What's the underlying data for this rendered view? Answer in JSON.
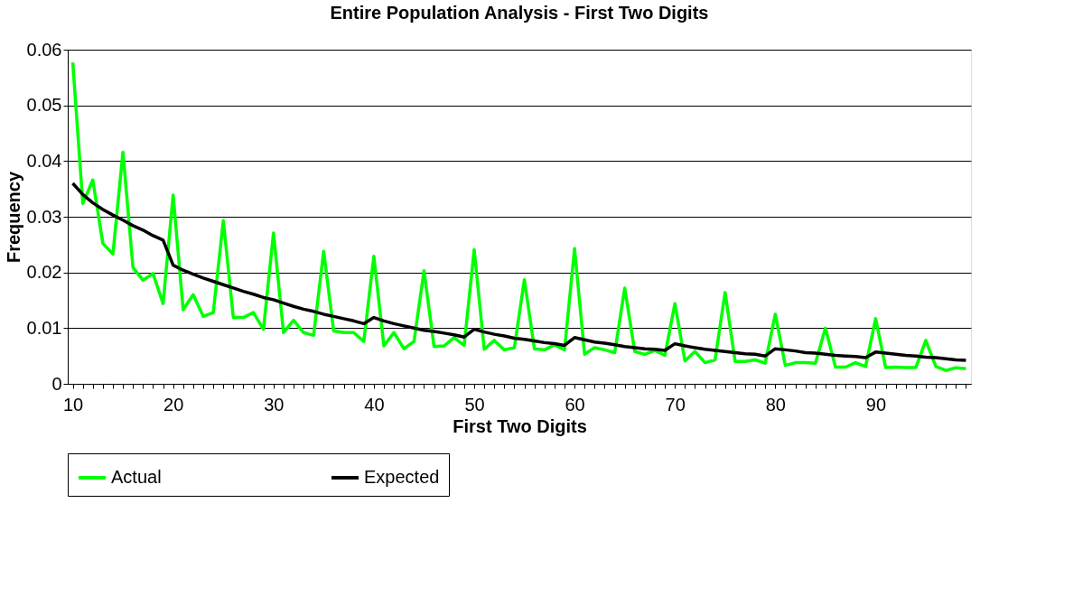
{
  "chart_data": {
    "type": "line",
    "title": "Entire Population Analysis - First Two Digits",
    "xlabel": "First Two Digits",
    "ylabel": "Frequency",
    "categories": [
      "10",
      null,
      null,
      null,
      null,
      null,
      null,
      null,
      null,
      null,
      "20",
      null,
      null,
      null,
      null,
      null,
      null,
      null,
      null,
      null,
      "30",
      null,
      null,
      null,
      null,
      null,
      null,
      null,
      null,
      null,
      "40",
      null,
      null,
      null,
      null,
      null,
      null,
      null,
      null,
      null,
      "50",
      null,
      null,
      null,
      null,
      null,
      null,
      null,
      null,
      null,
      "60",
      null,
      null,
      null,
      null,
      null,
      null,
      null,
      null,
      null,
      "70",
      null,
      null,
      null,
      null,
      null,
      null,
      null,
      null,
      null,
      "80",
      null,
      null,
      null,
      null,
      null,
      null,
      null,
      null,
      null,
      "90",
      null,
      null,
      null,
      null,
      null,
      null,
      null,
      null,
      null
    ],
    "series": [
      {
        "name": "Actual",
        "color": "#00ff00",
        "values": [
          0.0577,
          0.0324,
          0.0366,
          0.0252,
          0.0233,
          0.0416,
          0.0209,
          0.0186,
          0.0198,
          0.0144,
          0.0339,
          0.0133,
          0.016,
          0.0121,
          0.0128,
          0.0293,
          0.0119,
          0.0119,
          0.0128,
          0.0098,
          0.0271,
          0.0092,
          0.0114,
          0.0092,
          0.0087,
          0.0238,
          0.0095,
          0.0092,
          0.0092,
          0.0076,
          0.0229,
          0.0068,
          0.0092,
          0.0063,
          0.0076,
          0.0203,
          0.0067,
          0.0068,
          0.0083,
          0.0069,
          0.0241,
          0.0062,
          0.0078,
          0.0061,
          0.0065,
          0.0187,
          0.0063,
          0.0061,
          0.007,
          0.0061,
          0.0243,
          0.0053,
          0.0065,
          0.0061,
          0.0056,
          0.0172,
          0.0058,
          0.0053,
          0.006,
          0.0051,
          0.0144,
          0.0041,
          0.0058,
          0.0038,
          0.0043,
          0.0164,
          0.004,
          0.004,
          0.0043,
          0.0037,
          0.0125,
          0.0033,
          0.0038,
          0.0038,
          0.0037,
          0.01,
          0.003,
          0.003,
          0.0038,
          0.0031,
          0.0117,
          0.0029,
          0.003,
          0.0029,
          0.0029,
          0.0078,
          0.0031,
          0.0024,
          0.0029,
          0.0027
        ]
      },
      {
        "name": "Expected",
        "color": "#000000",
        "values": [
          0.036,
          0.034,
          0.0325,
          0.0313,
          0.0303,
          0.0294,
          0.0284,
          0.0276,
          0.0266,
          0.0258,
          0.0213,
          0.0204,
          0.0197,
          0.019,
          0.0184,
          0.0178,
          0.0172,
          0.0166,
          0.0161,
          0.0155,
          0.0151,
          0.0145,
          0.0139,
          0.0134,
          0.013,
          0.0125,
          0.0121,
          0.0117,
          0.0113,
          0.0108,
          0.0119,
          0.0113,
          0.0108,
          0.0104,
          0.01,
          0.0096,
          0.0094,
          0.0091,
          0.0088,
          0.0084,
          0.0098,
          0.0093,
          0.0089,
          0.0086,
          0.0082,
          0.008,
          0.0077,
          0.0074,
          0.0072,
          0.0069,
          0.0083,
          0.0079,
          0.0075,
          0.0073,
          0.007,
          0.0067,
          0.0065,
          0.0063,
          0.0062,
          0.006,
          0.0072,
          0.0068,
          0.0065,
          0.0062,
          0.006,
          0.0058,
          0.0056,
          0.0054,
          0.0053,
          0.005,
          0.0063,
          0.0061,
          0.0059,
          0.0056,
          0.0055,
          0.0053,
          0.0051,
          0.005,
          0.0049,
          0.0047,
          0.0057,
          0.0055,
          0.0053,
          0.0051,
          0.005,
          0.0048,
          0.0047,
          0.0045,
          0.0043,
          0.0042
        ]
      }
    ],
    "ylim": [
      0,
      0.06
    ],
    "yticks": [
      0,
      0.01,
      0.02,
      0.03,
      0.04,
      0.05,
      0.06
    ],
    "grid": "y",
    "legend": "bottom",
    "line_style": "solid"
  }
}
